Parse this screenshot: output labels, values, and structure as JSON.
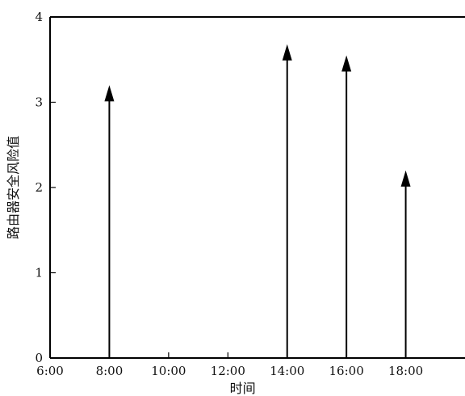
{
  "chart_data": {
    "type": "bar",
    "title": "",
    "xlabel": "时间",
    "ylabel": "路由器安全风险值",
    "x_ticks": [
      "6:00",
      "8:00",
      "10:00",
      "12:00",
      "14:00",
      "16:00",
      "18:00"
    ],
    "y_ticks": [
      "0",
      "1",
      "2",
      "3",
      "4"
    ],
    "xlim": [
      "6:00",
      "20:00"
    ],
    "ylim": [
      0,
      4
    ],
    "grid": false,
    "mark_style": "arrow",
    "color": "#000000",
    "points": [
      {
        "x": "8:00",
        "y": 3.2
      },
      {
        "x": "14:00",
        "y": 3.68
      },
      {
        "x": "16:00",
        "y": 3.55
      },
      {
        "x": "18:00",
        "y": 2.2
      }
    ]
  }
}
